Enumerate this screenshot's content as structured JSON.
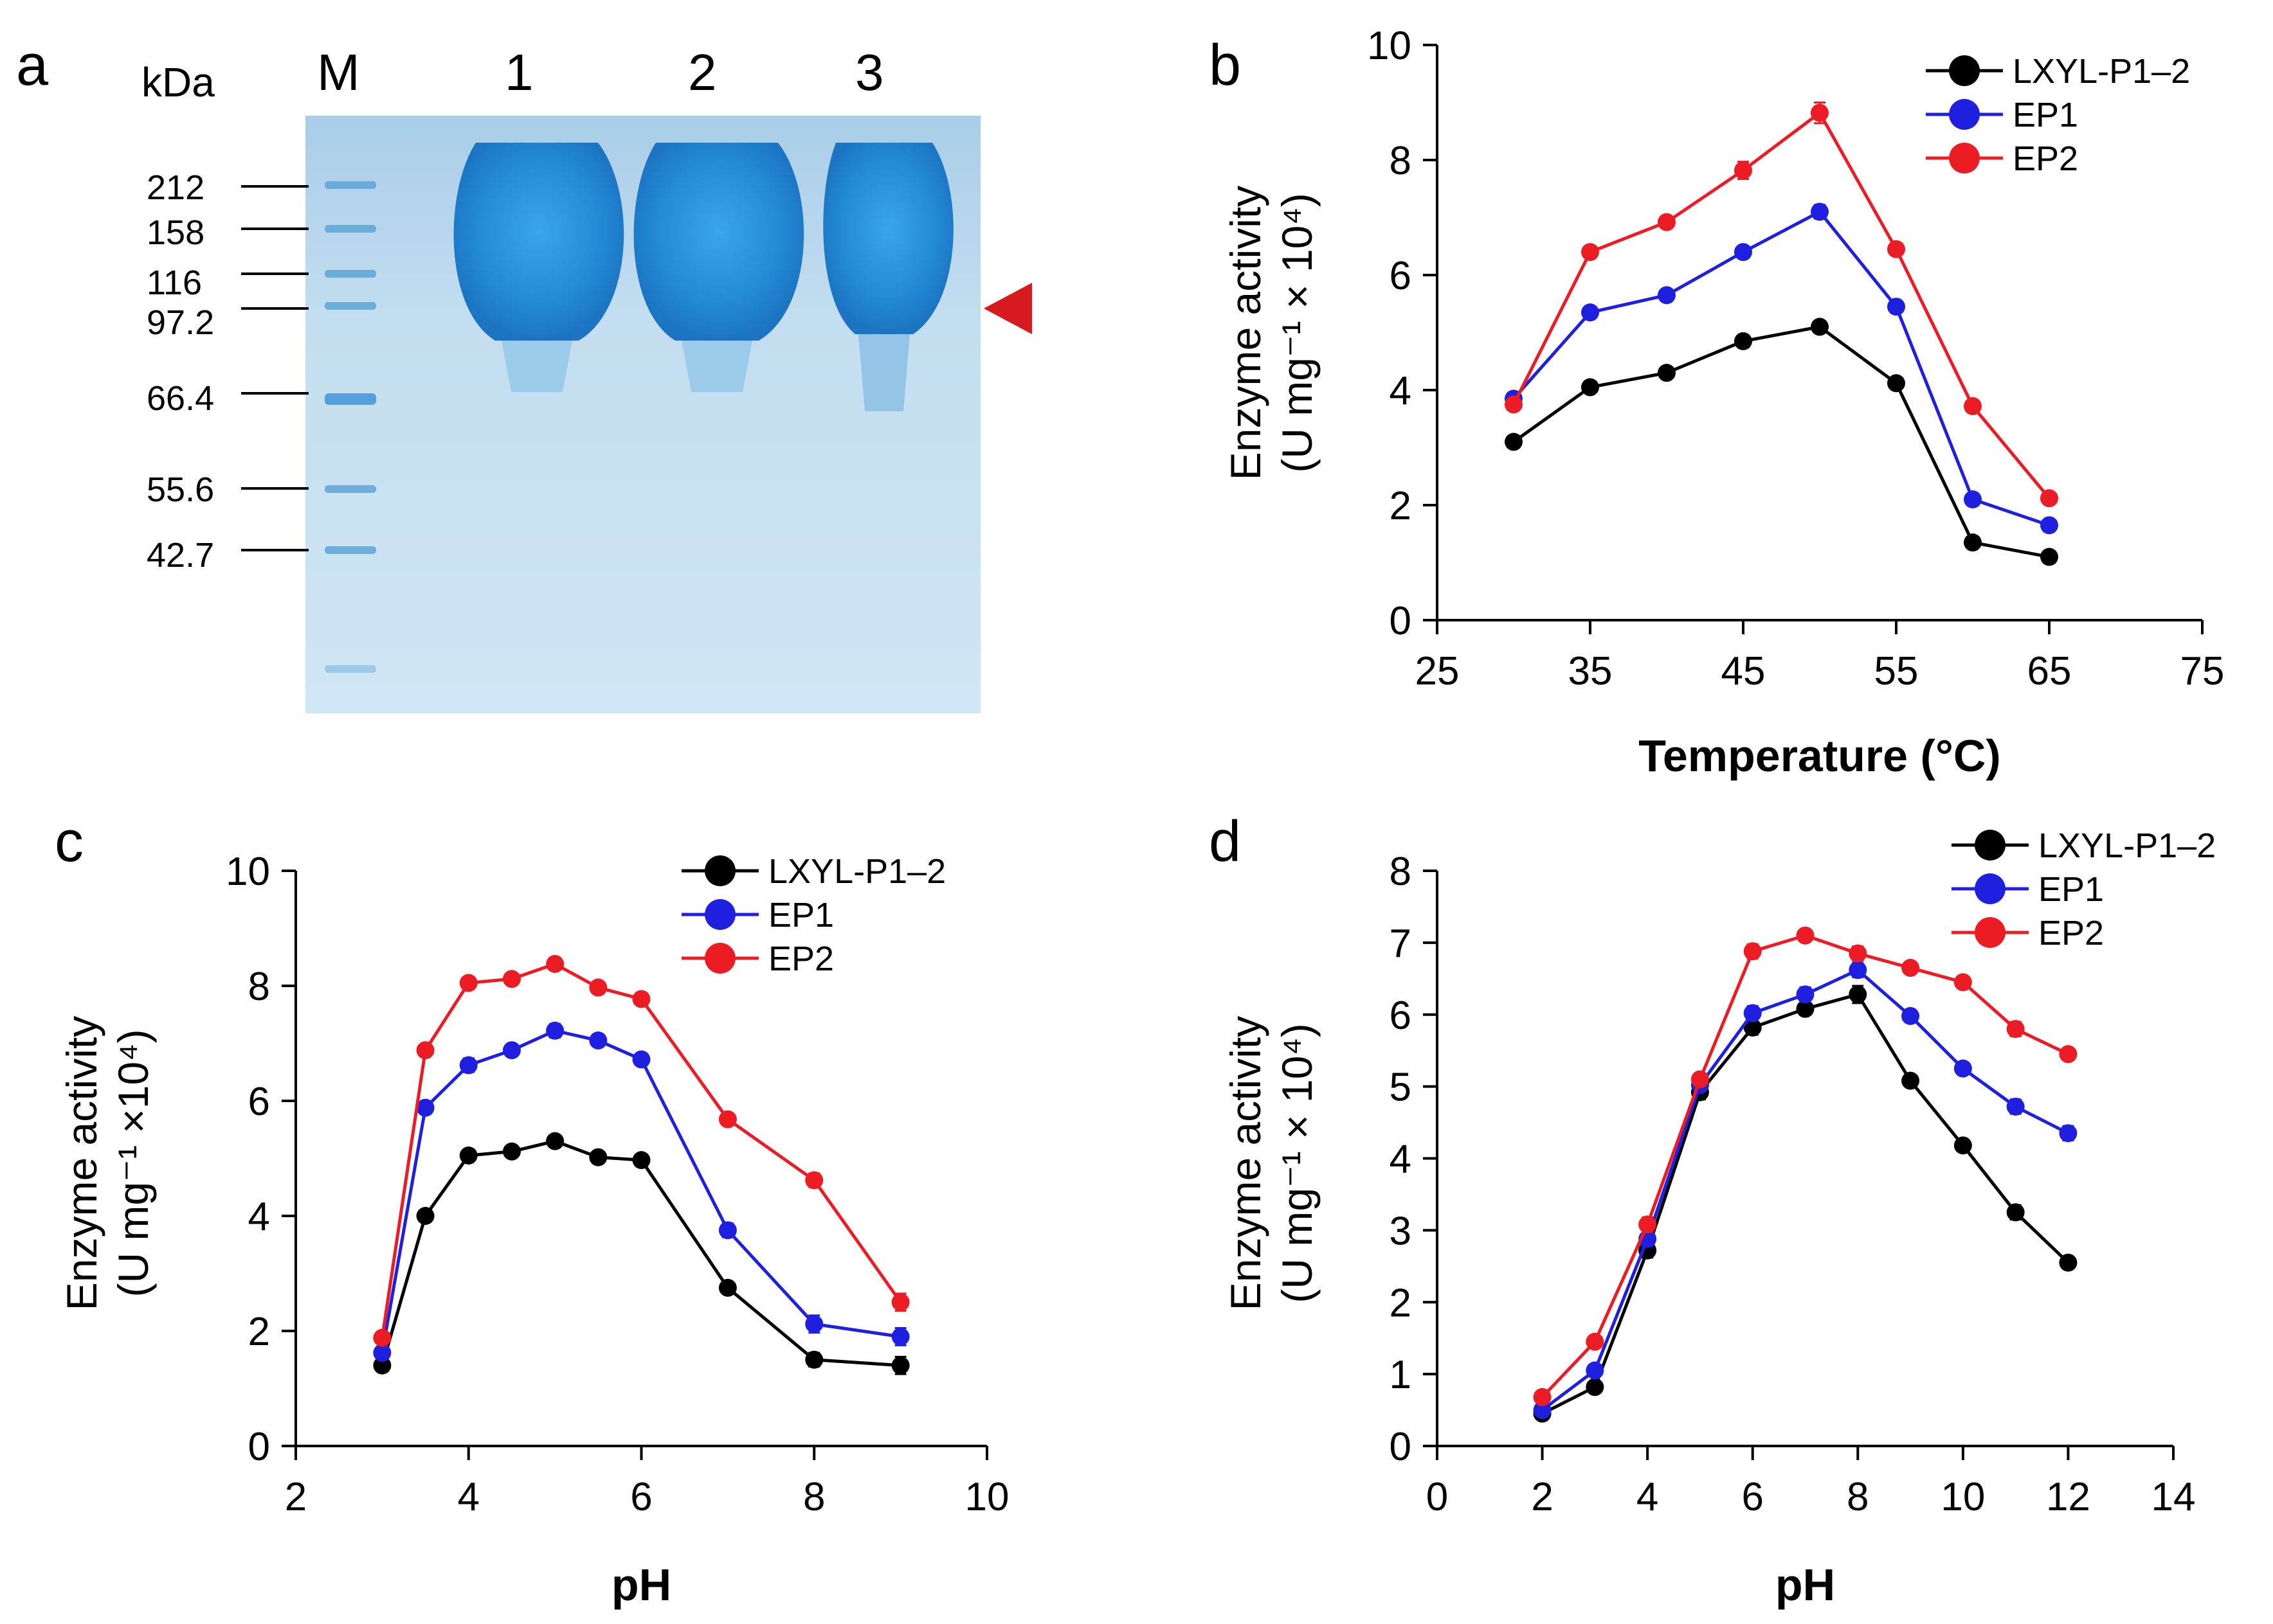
{
  "panel_a": {
    "letter": "a",
    "unit_label": "kDa",
    "lane_labels": [
      "M",
      "1",
      "2",
      "3"
    ],
    "markers": [
      "212",
      "158",
      "116",
      "97.2",
      "66.4",
      "55.6",
      "42.7"
    ],
    "marker_values": [
      212,
      158,
      116,
      97.2,
      66.4,
      55.6,
      42.7
    ],
    "arrow_color": "#d61a1f",
    "gel_background": "#c3def0",
    "band_color": "#2a8fd6"
  },
  "series_colors": {
    "LXYL-P1–2": "#000000",
    "EP1": "#1f1fe0",
    "EP2": "#ec1c24"
  },
  "chart_data": [
    {
      "id": "b",
      "letter": "b",
      "type": "line",
      "xlabel": "Temperature (°C)",
      "ylabel_line1": "Enzyme activity",
      "ylabel_line2": "(U mg⁻¹ × 10⁴)",
      "xlim": [
        25,
        75
      ],
      "ylim": [
        0,
        10
      ],
      "xticks": [
        "25",
        "35",
        "45",
        "55",
        "65",
        "75"
      ],
      "yticks": [
        "0",
        "2",
        "4",
        "6",
        "8",
        "10"
      ],
      "legend": [
        "LXYL-P1–2",
        "EP1",
        "EP2"
      ],
      "x": [
        30,
        35,
        40,
        45,
        50,
        55,
        60,
        65
      ],
      "series": [
        {
          "name": "LXYL-P1–2",
          "values": [
            3.1,
            4.05,
            4.3,
            4.85,
            5.1,
            4.12,
            1.35,
            1.1
          ],
          "err": [
            0.05,
            0.05,
            0.05,
            0.05,
            0.06,
            0.05,
            0.05,
            0.05
          ]
        },
        {
          "name": "EP1",
          "values": [
            3.85,
            5.35,
            5.65,
            6.4,
            7.1,
            5.45,
            2.1,
            1.65
          ],
          "err": [
            0.06,
            0.08,
            0.08,
            0.1,
            0.12,
            0.08,
            0.05,
            0.06
          ]
        },
        {
          "name": "EP2",
          "values": [
            3.75,
            6.4,
            6.92,
            7.82,
            8.82,
            6.45,
            3.72,
            2.12
          ],
          "err": [
            0.06,
            0.1,
            0.08,
            0.15,
            0.18,
            0.08,
            0.07,
            0.06
          ]
        }
      ]
    },
    {
      "id": "c",
      "letter": "c",
      "type": "line",
      "xlabel": "pH",
      "ylabel_line1": "Enzyme activity",
      "ylabel_line2": "(U mg⁻¹ ×10⁴)",
      "xlim": [
        2,
        10
      ],
      "ylim": [
        0,
        10
      ],
      "xticks": [
        "2",
        "4",
        "6",
        "8",
        "10"
      ],
      "yticks": [
        "0",
        "2",
        "4",
        "6",
        "8",
        "10"
      ],
      "legend": [
        "LXYL-P1–2",
        "EP1",
        "EP2"
      ],
      "x": [
        3,
        3.5,
        4,
        4.5,
        5,
        5.5,
        6,
        7,
        8,
        9
      ],
      "series": [
        {
          "name": "LXYL-P1–2",
          "values": [
            1.4,
            4.0,
            5.05,
            5.12,
            5.3,
            5.02,
            4.97,
            2.75,
            1.5,
            1.4
          ],
          "err": [
            0.07,
            0.07,
            0.07,
            0.07,
            0.1,
            0.1,
            0.07,
            0.08,
            0.12,
            0.15
          ]
        },
        {
          "name": "EP1",
          "values": [
            1.62,
            5.88,
            6.62,
            6.88,
            7.22,
            7.05,
            6.72,
            3.75,
            2.12,
            1.9
          ],
          "err": [
            0.07,
            0.07,
            0.12,
            0.1,
            0.12,
            0.1,
            0.1,
            0.12,
            0.15,
            0.15
          ]
        },
        {
          "name": "EP2",
          "values": [
            1.88,
            6.88,
            8.05,
            8.12,
            8.38,
            7.97,
            7.77,
            5.68,
            4.62,
            2.5
          ],
          "err": [
            0.07,
            0.07,
            0.07,
            0.07,
            0.07,
            0.07,
            0.07,
            0.07,
            0.12,
            0.15
          ]
        }
      ]
    },
    {
      "id": "d",
      "letter": "d",
      "type": "line",
      "xlabel": "pH",
      "ylabel_line1": "Enzyme activity",
      "ylabel_line2": "(U mg⁻¹ × 10⁴)",
      "xlim": [
        0,
        14
      ],
      "ylim": [
        0,
        8
      ],
      "xticks": [
        "0",
        "2",
        "4",
        "6",
        "8",
        "10",
        "12",
        "14"
      ],
      "yticks": [
        "0",
        "1",
        "2",
        "3",
        "4",
        "5",
        "6",
        "7",
        "8"
      ],
      "legend": [
        "LXYL-P1–2",
        "EP1",
        "EP2"
      ],
      "x": [
        2,
        3,
        4,
        5,
        6,
        7,
        8,
        9,
        10,
        11,
        12
      ],
      "series": [
        {
          "name": "LXYL-P1–2",
          "values": [
            0.45,
            0.82,
            2.72,
            4.92,
            5.82,
            6.08,
            6.28,
            5.08,
            4.18,
            3.25,
            2.55
          ],
          "err": [
            0.05,
            0.08,
            0.1,
            0.1,
            0.1,
            0.08,
            0.12,
            0.05,
            0.05,
            0.1,
            0.05
          ]
        },
        {
          "name": "EP1",
          "values": [
            0.5,
            1.05,
            2.88,
            5.02,
            6.02,
            6.28,
            6.62,
            5.98,
            5.25,
            4.72,
            4.35
          ],
          "err": [
            0.05,
            0.08,
            0.1,
            0.08,
            0.1,
            0.1,
            0.1,
            0.05,
            0.08,
            0.1,
            0.1
          ]
        },
        {
          "name": "EP2",
          "values": [
            0.68,
            1.45,
            3.08,
            5.1,
            6.88,
            7.1,
            6.85,
            6.65,
            6.45,
            5.8,
            5.45
          ],
          "err": [
            0.05,
            0.08,
            0.1,
            0.08,
            0.1,
            0.08,
            0.1,
            0.05,
            0.08,
            0.1,
            0.08
          ]
        }
      ]
    }
  ]
}
